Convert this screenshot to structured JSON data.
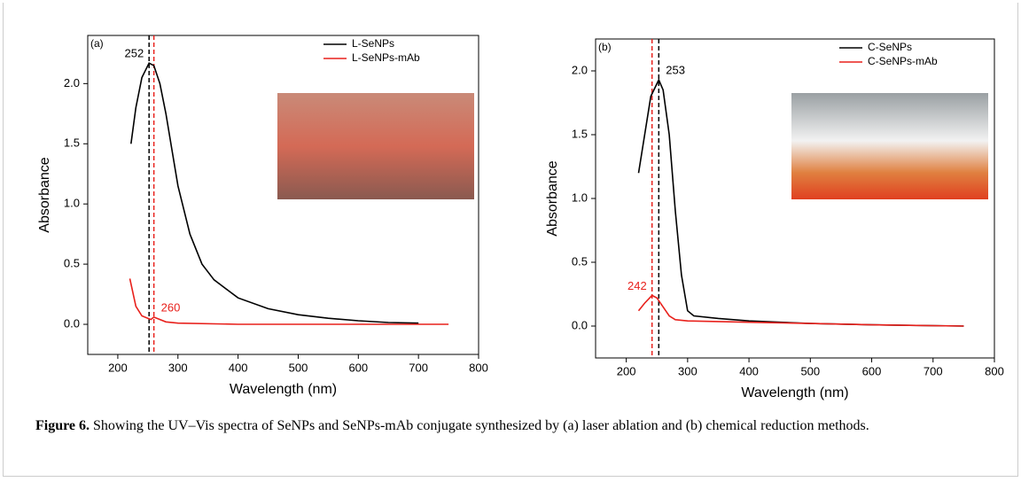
{
  "chart_data": [
    {
      "type": "line",
      "panel_label": "(a)",
      "xlabel": "Wavelength (nm)",
      "ylabel": "Absorbance",
      "xlim": [
        150,
        800
      ],
      "xticks": [
        200,
        300,
        400,
        500,
        600,
        700,
        800
      ],
      "ylim": [
        -0.25,
        2.4
      ],
      "yticks": [
        {
          "value": 0,
          "label": "0.0"
        },
        0.5,
        {
          "value": 1,
          "label": "1.0"
        },
        1.5,
        {
          "value": 2,
          "label": "2.0"
        }
      ],
      "legend": "top-right",
      "series": [
        {
          "name": "L-SeNPs",
          "color": "#000000",
          "x": [
            222,
            230,
            240,
            252,
            260,
            270,
            280,
            290,
            300,
            320,
            340,
            360,
            400,
            450,
            500,
            550,
            600,
            650,
            700
          ],
          "values": [
            1.5,
            1.8,
            2.05,
            2.17,
            2.15,
            2.0,
            1.75,
            1.45,
            1.15,
            0.75,
            0.5,
            0.37,
            0.22,
            0.13,
            0.08,
            0.05,
            0.03,
            0.015,
            0.01
          ]
        },
        {
          "name": "L-SeNPs-mAb",
          "color": "#e8211c",
          "x": [
            220,
            230,
            240,
            250,
            255,
            260,
            265,
            280,
            300,
            400,
            500,
            600,
            750
          ],
          "values": [
            0.38,
            0.15,
            0.07,
            0.05,
            0.04,
            0.06,
            0.05,
            0.02,
            0.01,
            0,
            0,
            0,
            0
          ]
        }
      ],
      "annotations": [
        {
          "text": "252",
          "x": 252,
          "color": "#000000"
        },
        {
          "text": "260",
          "x": 260,
          "color": "#e8211c"
        }
      ]
    },
    {
      "type": "line",
      "panel_label": "(b)",
      "xlabel": "Wavelength (nm)",
      "ylabel": "Absorbance",
      "xlim": [
        150,
        800
      ],
      "xticks": [
        200,
        300,
        400,
        500,
        600,
        700,
        800
      ],
      "ylim": [
        -0.25,
        2.25
      ],
      "yticks": [
        {
          "value": 0,
          "label": "0.0"
        },
        0.5,
        {
          "value": 1,
          "label": "1.0"
        },
        1.5,
        {
          "value": 2,
          "label": "2.0"
        }
      ],
      "legend": "top-right",
      "series": [
        {
          "name": "C-SeNPs",
          "color": "#000000",
          "x": [
            220,
            230,
            240,
            253,
            260,
            270,
            280,
            290,
            300,
            310,
            350,
            400,
            500,
            600,
            750
          ],
          "values": [
            1.2,
            1.5,
            1.8,
            1.93,
            1.85,
            1.5,
            0.9,
            0.4,
            0.12,
            0.08,
            0.06,
            0.04,
            0.02,
            0.01,
            0
          ]
        },
        {
          "name": "C-SeNPs-mAb",
          "color": "#e8211c",
          "x": [
            220,
            230,
            242,
            250,
            260,
            270,
            280,
            300,
            400,
            500,
            600,
            750
          ],
          "values": [
            0.12,
            0.18,
            0.24,
            0.22,
            0.15,
            0.08,
            0.05,
            0.04,
            0.03,
            0.02,
            0.01,
            0
          ]
        }
      ],
      "annotations": [
        {
          "text": "253",
          "x": 253,
          "color": "#000000"
        },
        {
          "text": "242",
          "x": 242,
          "color": "#e8211c"
        }
      ]
    }
  ],
  "caption": {
    "label": "Figure 6.",
    "text": "Showing the UV–Vis spectra of SeNPs and SeNPs-mAb conjugate synthesized by (a) laser ablation and (b) chemical reduction methods."
  }
}
